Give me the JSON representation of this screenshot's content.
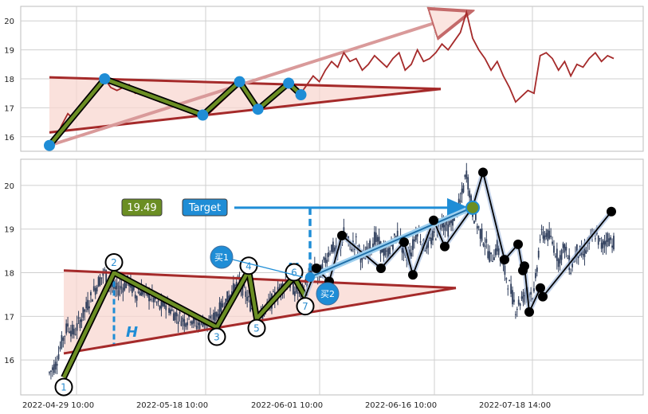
{
  "colors": {
    "line": "#a52a2a",
    "triangle_edge": "#a52a2a",
    "triangle_fill": "#f8d7d0",
    "zigzag": "#6b8e23",
    "accent_blue": "#1f8dd6",
    "black": "#000000",
    "candle": "#2f3e5c",
    "grid": "#cfcfcf"
  },
  "chart_data": [
    {
      "type": "line",
      "panel": "top",
      "title": "",
      "xlabel": "",
      "ylabel": "",
      "ylim": [
        15.5,
        20.5
      ],
      "yticks": [
        "16",
        "17",
        "18",
        "19",
        "20"
      ],
      "grid": true,
      "series": [
        {
          "values": [
            15.7,
            15.9,
            16.4,
            16.8,
            16.6,
            16.9,
            17.2,
            17.5,
            17.8,
            18.0,
            17.7,
            17.6,
            17.7,
            17.8,
            17.5,
            17.6,
            17.5,
            17.4,
            17.2,
            17.3,
            17.1,
            17.0,
            16.9,
            17.0,
            16.8,
            16.9,
            16.8,
            17.0,
            17.2,
            17.4,
            17.6,
            17.8,
            17.5,
            17.2,
            16.9,
            17.1,
            17.3,
            17.5,
            17.7,
            17.8,
            17.6,
            17.5,
            17.8,
            18.1,
            17.9,
            18.3,
            18.6,
            18.4,
            18.9,
            18.6,
            18.7,
            18.3,
            18.5,
            18.8,
            18.6,
            18.4,
            18.7,
            18.9,
            18.3,
            18.5,
            19.0,
            18.6,
            18.7,
            18.9,
            19.2,
            19.0,
            19.3,
            19.6,
            20.3,
            19.4,
            19.0,
            18.7,
            18.3,
            18.6,
            18.1,
            17.7,
            17.2,
            17.4,
            17.6,
            17.5,
            18.8,
            18.9,
            18.7,
            18.3,
            18.6,
            18.1,
            18.5,
            18.4,
            18.7,
            18.9,
            18.6,
            18.8,
            18.7
          ]
        }
      ],
      "pattern_points": [
        15.7,
        18.0,
        16.75,
        17.9,
        16.95,
        17.85,
        17.45
      ],
      "triangle": {
        "upper": [
          18.05,
          17.65
        ],
        "lower": [
          16.15,
          17.65
        ]
      },
      "target_arrow": [
        15.7,
        20.3
      ]
    },
    {
      "type": "candlestick",
      "panel": "bottom",
      "title": "",
      "xlabel": "",
      "ylabel": "",
      "ylim": [
        15.2,
        20.6
      ],
      "yticks": [
        "16",
        "17",
        "18",
        "19",
        "20"
      ],
      "xticks": [
        "2022-04-29 10:00",
        "2022-05-18 10:00",
        "2022-06-01 10:00",
        "2022-06-16 10:00",
        "2022-07-18 14:00"
      ],
      "grid": true,
      "closes": [
        15.7,
        15.9,
        16.4,
        16.8,
        16.6,
        16.9,
        17.2,
        17.5,
        17.8,
        18.0,
        17.7,
        17.6,
        17.7,
        17.8,
        17.5,
        17.6,
        17.5,
        17.4,
        17.2,
        17.3,
        17.1,
        17.0,
        16.9,
        17.0,
        16.8,
        16.9,
        16.8,
        17.0,
        17.2,
        17.4,
        17.6,
        17.8,
        17.5,
        17.2,
        16.9,
        17.1,
        17.3,
        17.5,
        17.7,
        17.8,
        17.6,
        17.5,
        17.8,
        18.1,
        17.9,
        18.3,
        18.6,
        18.4,
        18.9,
        18.6,
        18.7,
        18.3,
        18.5,
        18.8,
        18.6,
        18.4,
        18.7,
        18.9,
        18.3,
        18.5,
        19.0,
        18.6,
        18.7,
        18.9,
        19.2,
        19.0,
        19.3,
        19.6,
        20.3,
        19.4,
        19.0,
        18.7,
        18.3,
        18.6,
        18.1,
        17.7,
        17.2,
        17.4,
        17.6,
        17.5,
        18.8,
        18.9,
        18.7,
        18.3,
        18.6,
        18.1,
        18.5,
        18.4,
        18.7,
        18.9,
        18.6,
        18.8,
        18.7
      ],
      "pivots": [
        {
          "label": "1",
          "value": 15.6
        },
        {
          "label": "2",
          "value": 18.0
        },
        {
          "label": "3",
          "value": 16.75
        },
        {
          "label": "4",
          "value": 18.05
        },
        {
          "label": "5",
          "value": 16.95
        },
        {
          "label": "6",
          "value": 17.9
        },
        {
          "label": "7",
          "value": 17.45
        }
      ],
      "pivot_label_4": "4",
      "pivot_label_6": "6",
      "triangle": {
        "upper": [
          18.05,
          17.65
        ],
        "lower": [
          16.15,
          17.65
        ]
      },
      "h_label": "H",
      "target_value": 19.49,
      "target_value_text": "19.49",
      "target_text": "Target",
      "buy1_text": "买1",
      "buy2_text": "买2",
      "after_points": [
        18.1,
        17.8,
        18.85,
        18.1,
        18.7,
        17.95,
        19.2,
        18.6,
        19.5,
        20.3,
        18.3,
        18.65,
        18.05,
        18.15,
        17.1,
        17.65,
        17.45,
        19.4
      ]
    }
  ]
}
